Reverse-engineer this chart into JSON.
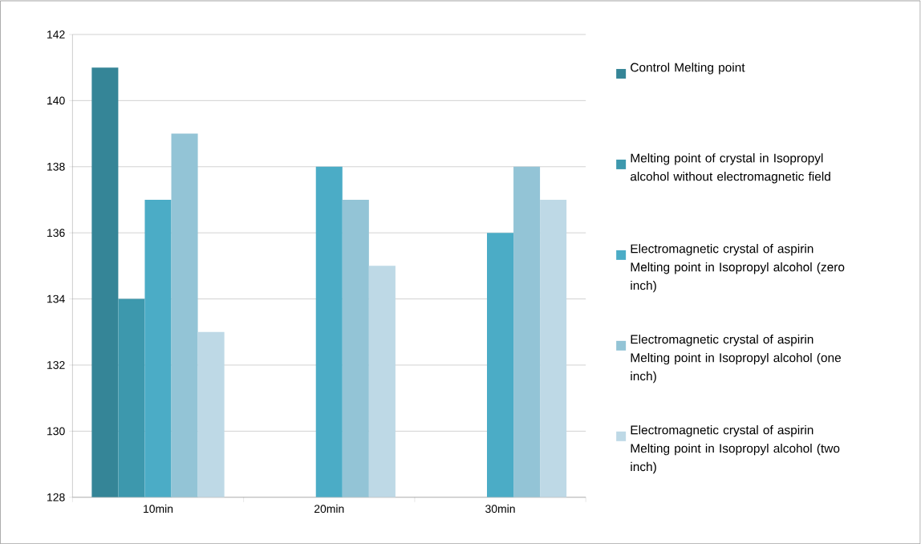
{
  "chart_data": {
    "type": "bar",
    "categories": [
      "10min",
      "20min",
      "30min"
    ],
    "series": [
      {
        "name": "Control Melting point",
        "color": "#358597",
        "values": [
          141,
          null,
          null
        ]
      },
      {
        "name": "Melting point  of crystal in Isopropyl alcohol without electromagnetic field",
        "color": "#3d98ad",
        "values": [
          134,
          null,
          null
        ]
      },
      {
        "name": "Electromagnetic crystal of aspirin Melting point in Isopropyl alcohol       (zero inch)",
        "color": "#4bacc6",
        "values": [
          137,
          138,
          136
        ]
      },
      {
        "name": "Electromagnetic crystal of aspirin  Melting point in Isopropyl alcohol       (one inch)",
        "color": "#93c4d6",
        "values": [
          139,
          137,
          138
        ]
      },
      {
        "name": "Electromagnetic crystal of aspirin  Melting point in Isopropyl alcohol (two inch)",
        "color": "#bed9e6",
        "values": [
          133,
          135,
          137
        ]
      }
    ],
    "ylim": [
      128,
      142
    ],
    "yticks": [
      128,
      130,
      132,
      134,
      136,
      138,
      140,
      142
    ],
    "grid": "y",
    "legend": "right"
  }
}
